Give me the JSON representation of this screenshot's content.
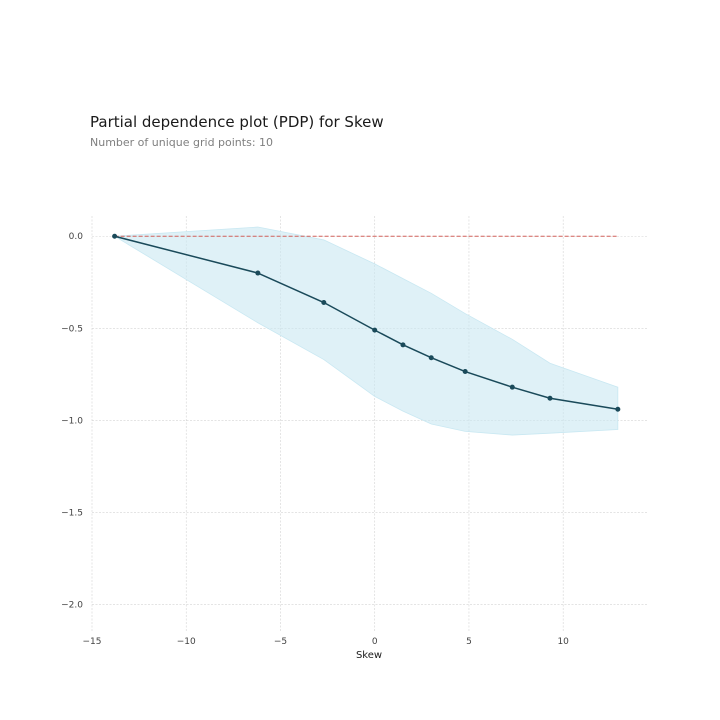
{
  "chart_data": {
    "type": "line",
    "title": "Partial dependence plot (PDP) for Skew",
    "subtitle": "Number of unique grid points: 10",
    "xlabel": "Skew",
    "ylabel": "",
    "xlim": [
      -15,
      14.5
    ],
    "ylim": [
      -2.15,
      0.11
    ],
    "x_ticks": [
      -15,
      -10,
      -5,
      0,
      5,
      10
    ],
    "x_tick_labels": [
      "−15",
      "−10",
      "−5",
      "0",
      "5",
      "10"
    ],
    "y_ticks": [
      0.0,
      -0.5,
      -1.0,
      -1.5,
      -2.0
    ],
    "y_tick_labels": [
      "0.0",
      "−0.5",
      "−1.0",
      "−1.5",
      "−2.0"
    ],
    "grid": true,
    "series": [
      {
        "x": [
          -13.8,
          -6.2,
          -2.7,
          0.0,
          1.5,
          3.0,
          4.8,
          7.3,
          9.3,
          12.9
        ],
        "values": [
          0.0,
          -0.2,
          -0.36,
          -0.51,
          -0.59,
          -0.66,
          -0.735,
          -0.82,
          -0.88,
          -0.94
        ],
        "lower": [
          0.0,
          -0.47,
          -0.67,
          -0.87,
          -0.95,
          -1.02,
          -1.06,
          -1.08,
          -1.07,
          -1.05
        ],
        "upper": [
          0.0,
          0.05,
          -0.02,
          -0.15,
          -0.23,
          -0.31,
          -0.42,
          -0.56,
          -0.69,
          -0.82
        ]
      }
    ],
    "reference_line": {
      "y": 0.0,
      "x_range": [
        -13.8,
        12.9
      ]
    },
    "colors": {
      "line": "#1a4a5a",
      "band": "#c9e8f2",
      "reference": "#d0605a",
      "grid": "#d3d3d3"
    }
  }
}
